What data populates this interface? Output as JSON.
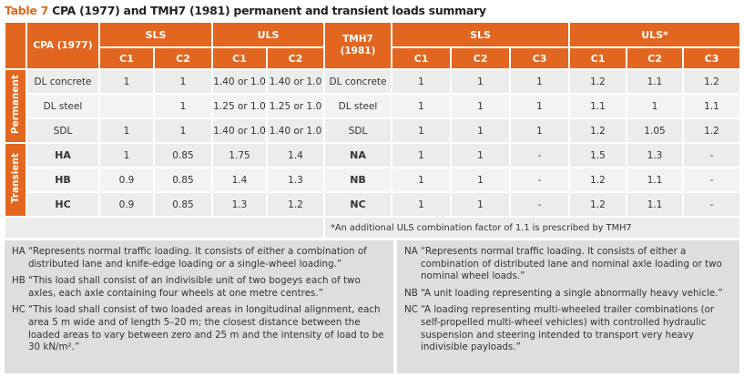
{
  "title": {
    "label": "Table 7",
    "text": "CPA (1977) and TMH7 (1981) permanent and transient loads summary"
  },
  "table": {
    "headers": {
      "cpa": "CPA (1977)",
      "sls": "SLS",
      "uls": "ULS",
      "tmh7": "TMH7 (1981)",
      "sls2": "SLS",
      "uls2": "ULS*",
      "sub": [
        "C1",
        "C2",
        "C1",
        "C2",
        "C1",
        "C2",
        "C3",
        "C1",
        "C2",
        "C3"
      ]
    },
    "groups": [
      {
        "name": "Permanent",
        "rows": [
          [
            "DL concrete",
            1,
            1,
            "1.40 or 1.0",
            "1.40 or 1.0",
            "DL concrete",
            1,
            1,
            1,
            1.2,
            1.1,
            1.2
          ],
          [
            "DL steel",
            null,
            1,
            "1.25 or 1.0",
            "1.25 or 1.0",
            "DL steel",
            1,
            1,
            1,
            1.1,
            1,
            1.1
          ],
          [
            "SDL",
            1,
            1,
            "1.40 or 1.0",
            "1.40 or 1.0",
            "SDL",
            1,
            1,
            1,
            1.2,
            1.05,
            1.2
          ]
        ]
      },
      {
        "name": "Transient",
        "rows": [
          [
            "HA",
            1,
            0.85,
            1.75,
            1.4,
            "NA",
            1,
            1,
            "-",
            1.5,
            1.3,
            "-"
          ],
          [
            "HB",
            0.9,
            0.85,
            1.4,
            1.3,
            "NB",
            1,
            1,
            "-",
            1.2,
            1.1,
            "-"
          ],
          [
            "HC",
            0.9,
            0.85,
            1.3,
            1.2,
            "NC",
            1,
            1,
            "-",
            1.2,
            1.1,
            "-"
          ]
        ]
      }
    ],
    "footnote": "*An additional ULS combination factor of 1.1 is prescribed by TMH7"
  },
  "notes": {
    "left": [
      {
        "code": "HA",
        "text": "“Represents normal traffic loading. It consists of either a combination of distributed lane and knife-edge loading or a single-wheel loading.”"
      },
      {
        "code": "HB",
        "text": "“This load shall consist of an indivisible unit of two bogeys each of two axles, each axle containing four wheels at one metre centres.”"
      },
      {
        "code": "HC",
        "text": "“This load shall consist of two loaded areas in longitudinal alignment, each area 5 m wide and of length 5–20 m; the closest distance between the loaded areas to vary between zero and 25 m and the intensity of load to be 30 kN/m².”"
      }
    ],
    "right": [
      {
        "code": "NA",
        "text": "“Represents normal traffic loading. It consists of either a combination of distributed lane and nominal axle loading or two nominal wheel loads.”"
      },
      {
        "code": "NB",
        "text": "“A unit loading representing a single abnormally heavy vehicle.”"
      },
      {
        "code": "NC",
        "text": "“A loading representing multi-wheeled trailer combinations (or self-propelled multi-wheel vehicles) with controlled hydraulic suspension and steering intended to transport very heavy indivisible payloads.”"
      }
    ]
  }
}
